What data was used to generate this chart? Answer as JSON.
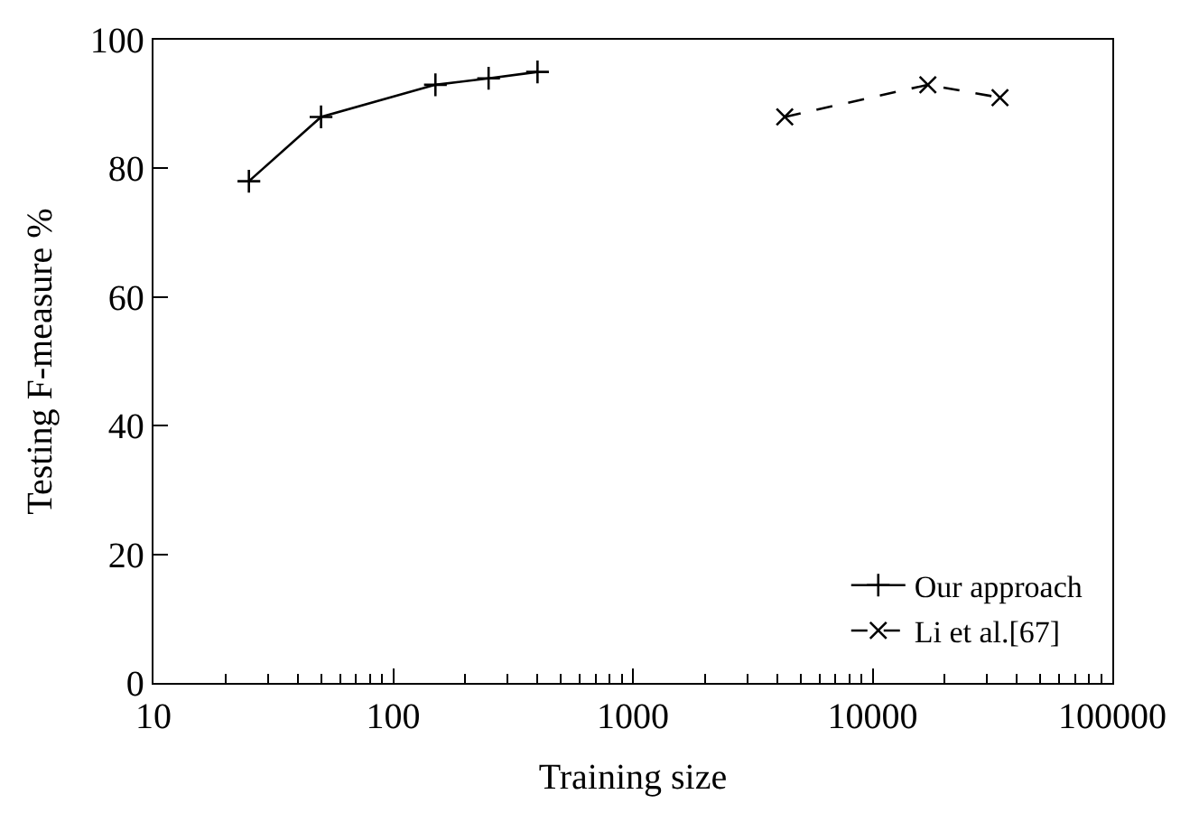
{
  "chart_data": {
    "type": "line",
    "xlabel": "Training size",
    "ylabel": "Testing F-measure %",
    "log": "x",
    "legend": "bottom right",
    "xlim": [
      10,
      100000
    ],
    "xticks": [
      10,
      100,
      1000,
      10000,
      100000
    ],
    "ylim": [
      0,
      100
    ],
    "yticks": [
      0,
      20,
      40,
      60,
      80,
      100
    ],
    "series": [
      {
        "name": "Our approach",
        "color": "#000000",
        "marker": "cross",
        "line_style": "solid",
        "x": [
          25,
          50,
          150,
          250,
          400
        ],
        "values": [
          78,
          88,
          93,
          94,
          95
        ]
      },
      {
        "name": "Li et al.[67]",
        "color": "#000000",
        "marker": "x",
        "line_style": "dashed",
        "x": [
          4300,
          17000,
          34000
        ],
        "values": [
          88,
          93,
          91
        ]
      }
    ]
  }
}
